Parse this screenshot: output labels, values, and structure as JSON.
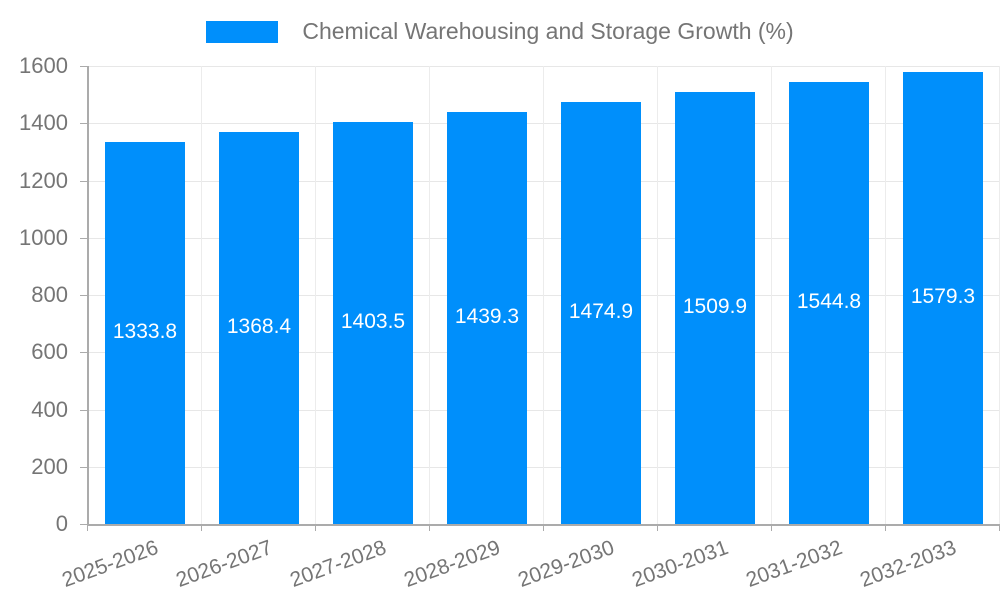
{
  "legend": {
    "swatch_color": "#008FFB"
  },
  "chart_data": {
    "type": "bar",
    "title": "Chemical Warehousing and Storage Growth (%)",
    "categories": [
      "2025-2026",
      "2026-2027",
      "2027-2028",
      "2028-2029",
      "2029-2030",
      "2030-2031",
      "2031-2032",
      "2032-2033"
    ],
    "values": [
      1333.8,
      1368.4,
      1403.5,
      1439.3,
      1474.9,
      1509.9,
      1544.8,
      1579.3
    ],
    "value_labels": [
      "1333.8",
      "1368.4",
      "1403.5",
      "1439.3",
      "1474.9",
      "1509.9",
      "1544.8",
      "1579.3"
    ],
    "xlabel": "",
    "ylabel": "",
    "ylim": [
      0,
      1600
    ],
    "yticks": [
      0,
      200,
      400,
      600,
      800,
      1000,
      1200,
      1400,
      1600
    ],
    "grid": true,
    "legend_position": "top-center",
    "bar_color": "#008FFB",
    "value_label_color": "#ffffff",
    "tick_label_color": "#757575",
    "grid_color": "#e7e7e7",
    "axis_color": "#ababab"
  }
}
